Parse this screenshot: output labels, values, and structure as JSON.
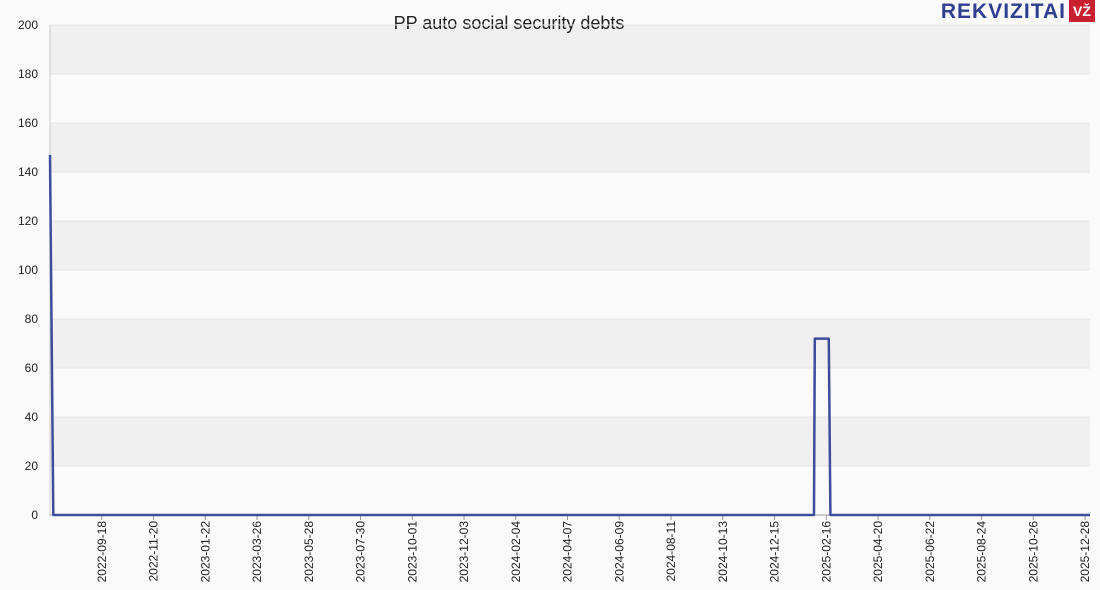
{
  "chart_data": {
    "type": "line",
    "title": "PP auto social security debts",
    "logo": {
      "text": "REKVIZITAI",
      "badge": "VŽ"
    },
    "x": [
      "2022-07-17",
      "2022-07-21",
      "2025-02-01",
      "2025-02-02",
      "2025-02-19",
      "2025-02-21",
      "2026-01-03"
    ],
    "series": [
      {
        "name": "PP auto social security debts",
        "color": "#3d4d9e",
        "values": [
          147,
          0,
          0,
          72,
          72,
          0,
          0
        ]
      }
    ],
    "xlim": [
      "2022-07-17",
      "2026-01-03"
    ],
    "xticks": [
      "2022-09-18",
      "2022-11-20",
      "2023-01-22",
      "2023-03-26",
      "2023-05-28",
      "2023-07-30",
      "2023-10-01",
      "2023-12-03",
      "2024-02-04",
      "2024-04-07",
      "2024-06-09",
      "2024-08-11",
      "2024-10-13",
      "2024-12-15",
      "2025-02-16",
      "2025-04-20",
      "2025-06-22",
      "2025-08-24",
      "2025-10-26",
      "2025-12-28"
    ],
    "ylim": [
      0,
      200
    ],
    "yticks": [
      0,
      20,
      40,
      60,
      80,
      100,
      120,
      140,
      160,
      180,
      200
    ],
    "grid": true
  }
}
